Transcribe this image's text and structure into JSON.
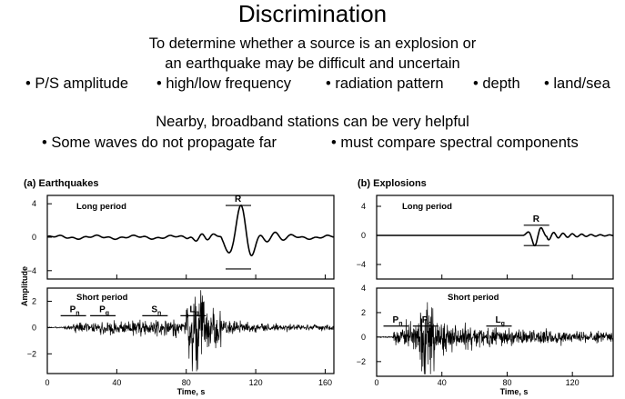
{
  "header": {
    "title": "Discrimination",
    "line1": "To determine whether a source is an explosion or",
    "line2": "an earthquake may be difficult and uncertain",
    "bullets1": [
      "• P/S amplitude",
      "• high/low frequency",
      "• radiation pattern",
      "• depth",
      "• land/sea"
    ],
    "line3": "Nearby, broadband stations can be very helpful",
    "bullets2": [
      "• Some waves do not propagate far",
      "• must compare spectral components"
    ]
  },
  "chart_data": [
    {
      "type": "line",
      "panel": "(a) Earthquakes",
      "xlabel": "Time, s",
      "ylabel": "Amplitude",
      "xlim": [
        0,
        165
      ],
      "xticks": [
        0,
        40,
        80,
        120,
        160
      ],
      "subplots": [
        {
          "label": "Long period",
          "ylim": [
            -5,
            5
          ],
          "yticks": [
            4,
            0,
            -4
          ],
          "tick_labels": [
            "4",
            "0",
            "−4"
          ],
          "phases": [
            {
              "name": "R",
              "t": 110
            }
          ]
        },
        {
          "label": "Short period",
          "ylim": [
            -3.5,
            3
          ],
          "yticks": [
            2,
            0,
            -2
          ],
          "tick_labels": [
            "2",
            "0",
            "−2"
          ],
          "phases": [
            {
              "name": "P",
              "sub": "n",
              "t": 15
            },
            {
              "name": "P",
              "sub": "g",
              "t": 32
            },
            {
              "name": "S",
              "sub": "n",
              "t": 62
            },
            {
              "name": "L",
              "sub": "g",
              "t": 84
            }
          ]
        }
      ]
    },
    {
      "type": "line",
      "panel": "(b) Explosions",
      "xlabel": "Time, s",
      "ylabel": "",
      "xlim": [
        0,
        145
      ],
      "xticks": [
        0,
        40,
        80,
        120
      ],
      "subplots": [
        {
          "label": "Long period",
          "ylim": [
            -6,
            5.5
          ],
          "yticks": [
            4,
            0,
            -4
          ],
          "tick_labels": [
            "4",
            "0",
            "−4"
          ],
          "phases": [
            {
              "name": "R",
              "t": 98
            }
          ]
        },
        {
          "label": "Short period",
          "ylim": [
            -3.2,
            4
          ],
          "yticks": [
            4,
            2,
            0,
            -2
          ],
          "tick_labels": [
            "4",
            "2",
            "0",
            "−2"
          ],
          "phases": [
            {
              "name": "P",
              "sub": "n",
              "t": 12
            },
            {
              "name": "P",
              "sub": "g",
              "t": 30
            },
            {
              "name": "L",
              "sub": "g",
              "t": 75
            }
          ]
        }
      ]
    }
  ]
}
